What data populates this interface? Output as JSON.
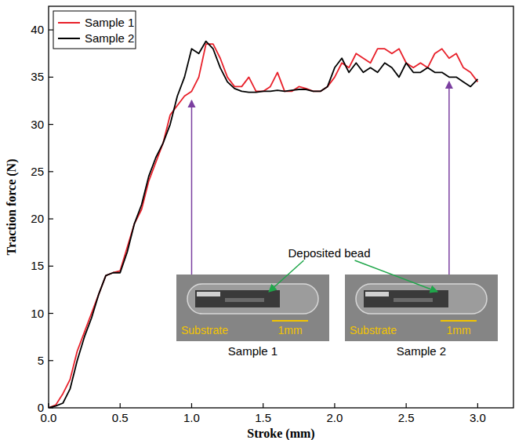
{
  "chart_data": {
    "type": "line",
    "x_label": "Stroke (mm)",
    "y_label": "Traction force (N)",
    "x": [
      0,
      0.05,
      0.1,
      0.15,
      0.2,
      0.25,
      0.3,
      0.35,
      0.4,
      0.45,
      0.5,
      0.55,
      0.6,
      0.65,
      0.7,
      0.75,
      0.8,
      0.85,
      0.9,
      0.95,
      1.0,
      1.05,
      1.1,
      1.15,
      1.2,
      1.25,
      1.3,
      1.35,
      1.4,
      1.45,
      1.5,
      1.55,
      1.6,
      1.65,
      1.7,
      1.75,
      1.8,
      1.85,
      1.9,
      1.95,
      2.0,
      2.05,
      2.1,
      2.15,
      2.2,
      2.25,
      2.3,
      2.35,
      2.4,
      2.45,
      2.5,
      2.55,
      2.6,
      2.65,
      2.7,
      2.75,
      2.8,
      2.85,
      2.9,
      2.95,
      3.0
    ],
    "xlim": [
      0,
      3.25
    ],
    "xticks": [
      {
        "value": 0,
        "label": "0.0"
      },
      0.5,
      {
        "value": 1,
        "label": "1.0"
      },
      1.5,
      {
        "value": 2,
        "label": "2.0"
      },
      2.5,
      {
        "value": 3,
        "label": "3.0"
      }
    ],
    "ylim": [
      0,
      42.5
    ],
    "yticks": [
      0,
      5,
      10,
      15,
      20,
      25,
      30,
      35,
      40
    ],
    "legend": "top-left",
    "series": [
      {
        "name": "Sample 1",
        "color": "#e8202a",
        "values": [
          0,
          0.3,
          1.5,
          3,
          6,
          8,
          10,
          12,
          14,
          14.3,
          14.5,
          17,
          19.5,
          21,
          24,
          26,
          28,
          31,
          32,
          33,
          33.5,
          35,
          38.5,
          38.5,
          37,
          35,
          34,
          34,
          35,
          33.5,
          33.5,
          34,
          35.5,
          33.5,
          33.5,
          34,
          33.8,
          33.5,
          33.5,
          34,
          35,
          36.5,
          36,
          37.5,
          37,
          36.5,
          38,
          38,
          37.5,
          38,
          36.5,
          36,
          36.5,
          36,
          37.5,
          38,
          37,
          37.5,
          36,
          35.5,
          34.5
        ]
      },
      {
        "name": "Sample 2",
        "color": "#000000",
        "values": [
          0,
          0.2,
          0.5,
          2,
          5,
          7.5,
          9.5,
          12,
          14,
          14.3,
          14.3,
          16.5,
          19.5,
          21.5,
          24.5,
          26.5,
          28,
          30,
          33,
          35,
          38,
          37.5,
          38.8,
          38,
          36,
          34.5,
          33.8,
          33.5,
          33.4,
          33.4,
          33.5,
          33.5,
          33.6,
          33.5,
          33.6,
          33.7,
          33.7,
          33.5,
          33.5,
          34,
          36,
          37,
          35.5,
          36.5,
          35.5,
          36,
          35.5,
          36.5,
          36,
          35,
          36.5,
          35.5,
          35.5,
          36,
          35.5,
          35.5,
          35,
          35,
          34.5,
          34,
          34.8
        ]
      }
    ],
    "annotations": {
      "pointer": "Deposited bead",
      "insets": [
        {
          "caption": "Sample 1",
          "substrate": "Substrate",
          "scale": "1mm"
        },
        {
          "caption": "Sample 2",
          "substrate": "Substrate",
          "scale": "1mm"
        }
      ]
    }
  }
}
